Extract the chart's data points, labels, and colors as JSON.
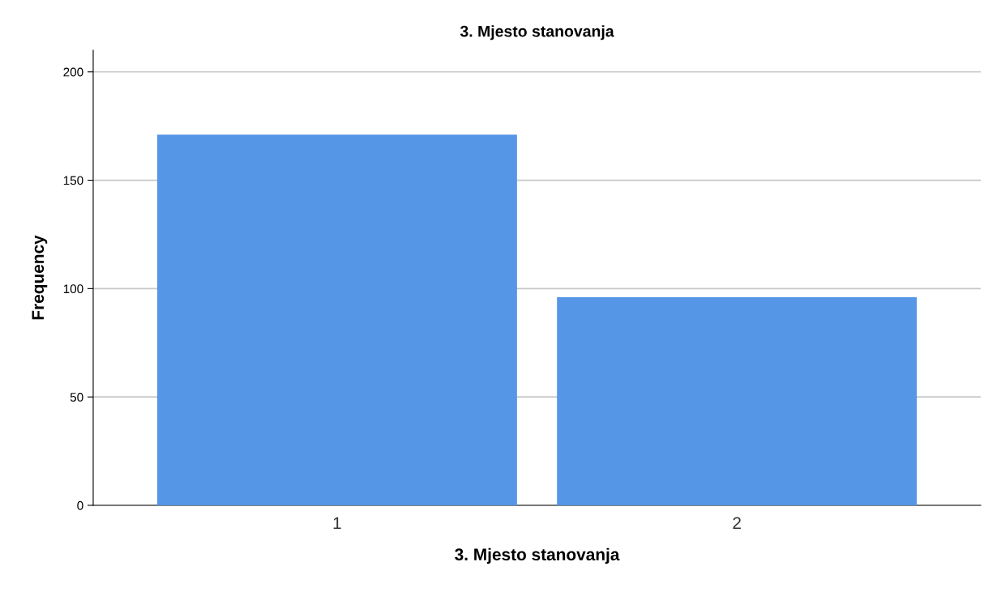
{
  "chart_data": {
    "type": "bar",
    "title": "3. Mjesto stanovanja",
    "xlabel": "3. Mjesto stanovanja",
    "ylabel": "Frequency",
    "categories": [
      "1",
      "2"
    ],
    "values": [
      171,
      96
    ],
    "color": "#5596e6",
    "ylim": [
      0,
      210
    ],
    "yticks": [
      0,
      50,
      100,
      150,
      200
    ],
    "grid": "y"
  }
}
